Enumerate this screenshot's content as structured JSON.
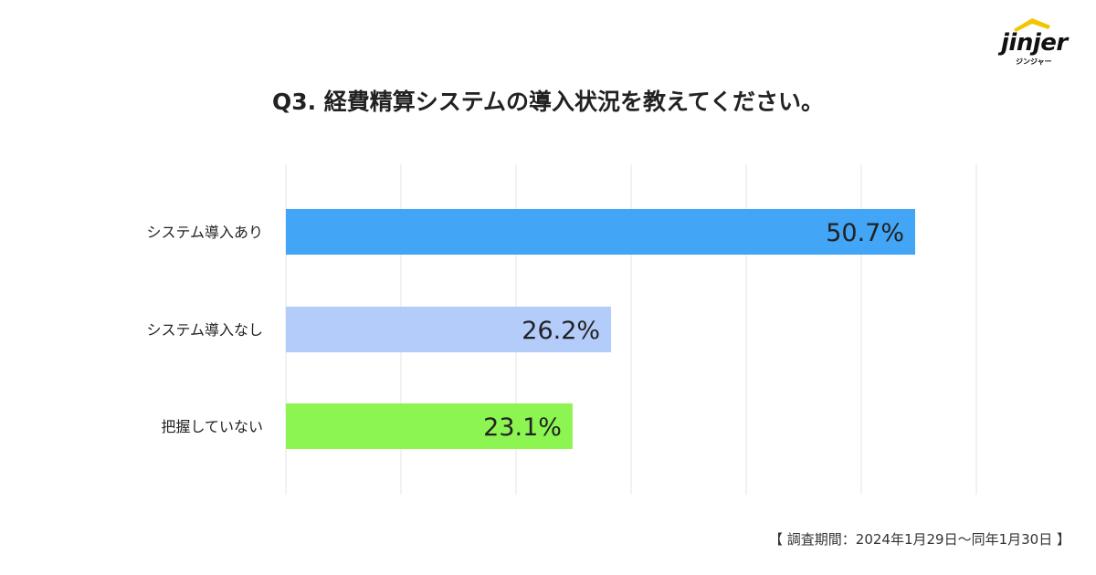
{
  "brand": {
    "logo_text": "jinjer",
    "logo_subtext": "ジンジャー",
    "accent_color": "#F5C400"
  },
  "title": "Q3. 経費精算システムの導入状況を教えてください。",
  "chart_data": {
    "type": "bar",
    "orientation": "horizontal",
    "title": "Q3. 経費精算システムの導入状況を教えてください。",
    "categories": [
      "システム導入あり",
      "システム導入なし",
      "把握していない"
    ],
    "values": [
      50.7,
      26.2,
      23.1
    ],
    "value_labels": [
      "50.7%",
      "26.2%",
      "23.1%"
    ],
    "colors": [
      "#42A5F5",
      "#B3CCFA",
      "#8DF551"
    ],
    "xlim": [
      0,
      60
    ],
    "grid": true,
    "legend": "none"
  },
  "footer": "【 調査期間：2024年1月29日〜同年1月30日 】"
}
